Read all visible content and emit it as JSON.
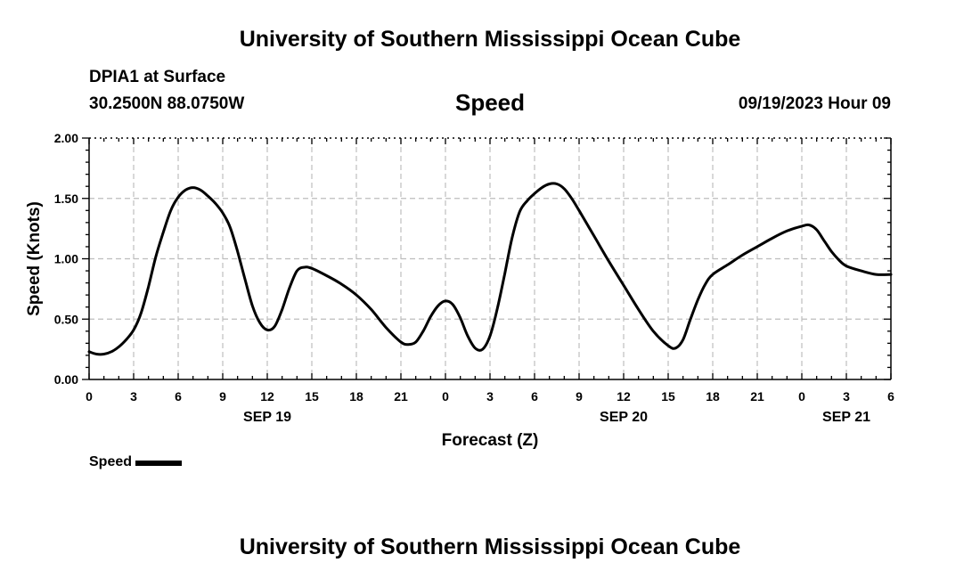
{
  "header": {
    "title": "University of Southern Mississippi Ocean Cube",
    "station": "DPIA1 at Surface",
    "coords": "30.2500N  88.0750W",
    "datetime": "09/19/2023 Hour 09"
  },
  "footer": {
    "title": "University of Southern Mississippi Ocean Cube"
  },
  "legend": {
    "label": "Speed"
  },
  "chart_data": {
    "type": "line",
    "title": "Speed",
    "xlabel": "Forecast (Z)",
    "ylabel": "Speed (Knots)",
    "xlim": [
      0,
      54
    ],
    "ylim": [
      0,
      2
    ],
    "grid": true,
    "y_ticks": [
      "0.00",
      "0.50",
      "1.00",
      "1.50",
      "2.00"
    ],
    "y_tick_values": [
      0,
      0.5,
      1.0,
      1.5,
      2.0
    ],
    "x_tick_labels": [
      "0",
      "3",
      "6",
      "9",
      "12",
      "15",
      "18",
      "21",
      "0",
      "3",
      "6",
      "9",
      "12",
      "15",
      "18",
      "21",
      "0",
      "3",
      "6"
    ],
    "x_tick_hours": [
      0,
      3,
      6,
      9,
      12,
      15,
      18,
      21,
      24,
      27,
      30,
      33,
      36,
      39,
      42,
      45,
      48,
      51,
      54
    ],
    "date_labels": [
      {
        "label": "SEP 19",
        "hour": 12
      },
      {
        "label": "SEP 20",
        "hour": 36
      },
      {
        "label": "SEP 21",
        "hour": 51
      }
    ],
    "series": [
      {
        "name": "Speed",
        "color": "#000000",
        "x": [
          0,
          0.5,
          1,
          1.5,
          2,
          2.5,
          3,
          3.5,
          4,
          4.5,
          5,
          5.5,
          6,
          6.5,
          7,
          7.5,
          8,
          8.5,
          9,
          9.5,
          10,
          10.5,
          11,
          11.5,
          12,
          12.5,
          13,
          13.5,
          14,
          14.5,
          15,
          16,
          17,
          18,
          19,
          20,
          21,
          21.5,
          22,
          22.5,
          23,
          23.5,
          24,
          24.5,
          25,
          25.5,
          26,
          26.5,
          27,
          27.5,
          28,
          28.5,
          29,
          29.5,
          30,
          30.5,
          31,
          31.5,
          32,
          32.5,
          33,
          34,
          35,
          36,
          37,
          38,
          39,
          39.5,
          40,
          40.5,
          41,
          41.5,
          42,
          43,
          44,
          45,
          46,
          47,
          48,
          48.5,
          49,
          49.5,
          50,
          50.5,
          51,
          52,
          53,
          54
        ],
        "values": [
          0.23,
          0.21,
          0.21,
          0.23,
          0.27,
          0.33,
          0.41,
          0.55,
          0.77,
          1.02,
          1.22,
          1.4,
          1.51,
          1.57,
          1.59,
          1.57,
          1.52,
          1.46,
          1.38,
          1.26,
          1.06,
          0.83,
          0.61,
          0.47,
          0.41,
          0.44,
          0.58,
          0.76,
          0.9,
          0.93,
          0.92,
          0.86,
          0.79,
          0.7,
          0.58,
          0.43,
          0.31,
          0.29,
          0.31,
          0.4,
          0.52,
          0.61,
          0.65,
          0.62,
          0.51,
          0.36,
          0.26,
          0.25,
          0.36,
          0.59,
          0.88,
          1.18,
          1.39,
          1.48,
          1.54,
          1.59,
          1.62,
          1.62,
          1.58,
          1.5,
          1.4,
          1.19,
          0.98,
          0.78,
          0.58,
          0.4,
          0.28,
          0.26,
          0.33,
          0.5,
          0.66,
          0.79,
          0.87,
          0.95,
          1.03,
          1.1,
          1.17,
          1.23,
          1.27,
          1.28,
          1.24,
          1.15,
          1.06,
          0.99,
          0.94,
          0.9,
          0.87,
          0.87
        ]
      }
    ]
  }
}
